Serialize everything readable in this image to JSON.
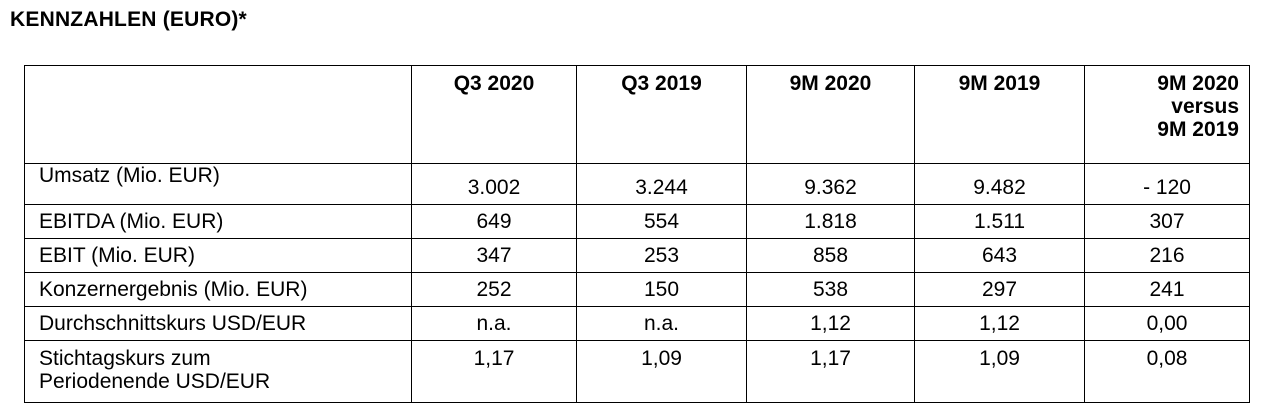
{
  "title": "KENNZAHLEN (EURO)*",
  "table": {
    "headers": [
      "",
      "Q3 2020",
      "Q3 2019",
      "9M 2020",
      "9M 2019"
    ],
    "last_header_lines": [
      "9M 2020",
      "versus",
      "9M 2019"
    ],
    "rows": [
      {
        "label_lines": [
          "Umsatz (Mio. EUR)"
        ],
        "values": [
          "3.002",
          "3.244",
          "9.362",
          "9.482",
          "- 120"
        ]
      },
      {
        "label_lines": [
          "EBITDA (Mio. EUR)"
        ],
        "values": [
          "649",
          "554",
          "1.818",
          "1.511",
          "307"
        ]
      },
      {
        "label_lines": [
          "EBIT (Mio. EUR)"
        ],
        "values": [
          "347",
          "253",
          "858",
          "643",
          "216"
        ]
      },
      {
        "label_lines": [
          "Konzernergebnis (Mio. EUR)"
        ],
        "values": [
          "252",
          "150",
          "538",
          "297",
          "241"
        ]
      },
      {
        "label_lines": [
          "Durchschnittskurs USD/EUR"
        ],
        "values": [
          "n.a.",
          "n.a.",
          "1,12",
          "1,12",
          "0,00"
        ]
      },
      {
        "label_lines": [
          "Stichtagskurs zum",
          "Periodenende USD/EUR"
        ],
        "values": [
          "1,17",
          "1,09",
          "1,17",
          "1,09",
          "0,08"
        ]
      }
    ]
  }
}
